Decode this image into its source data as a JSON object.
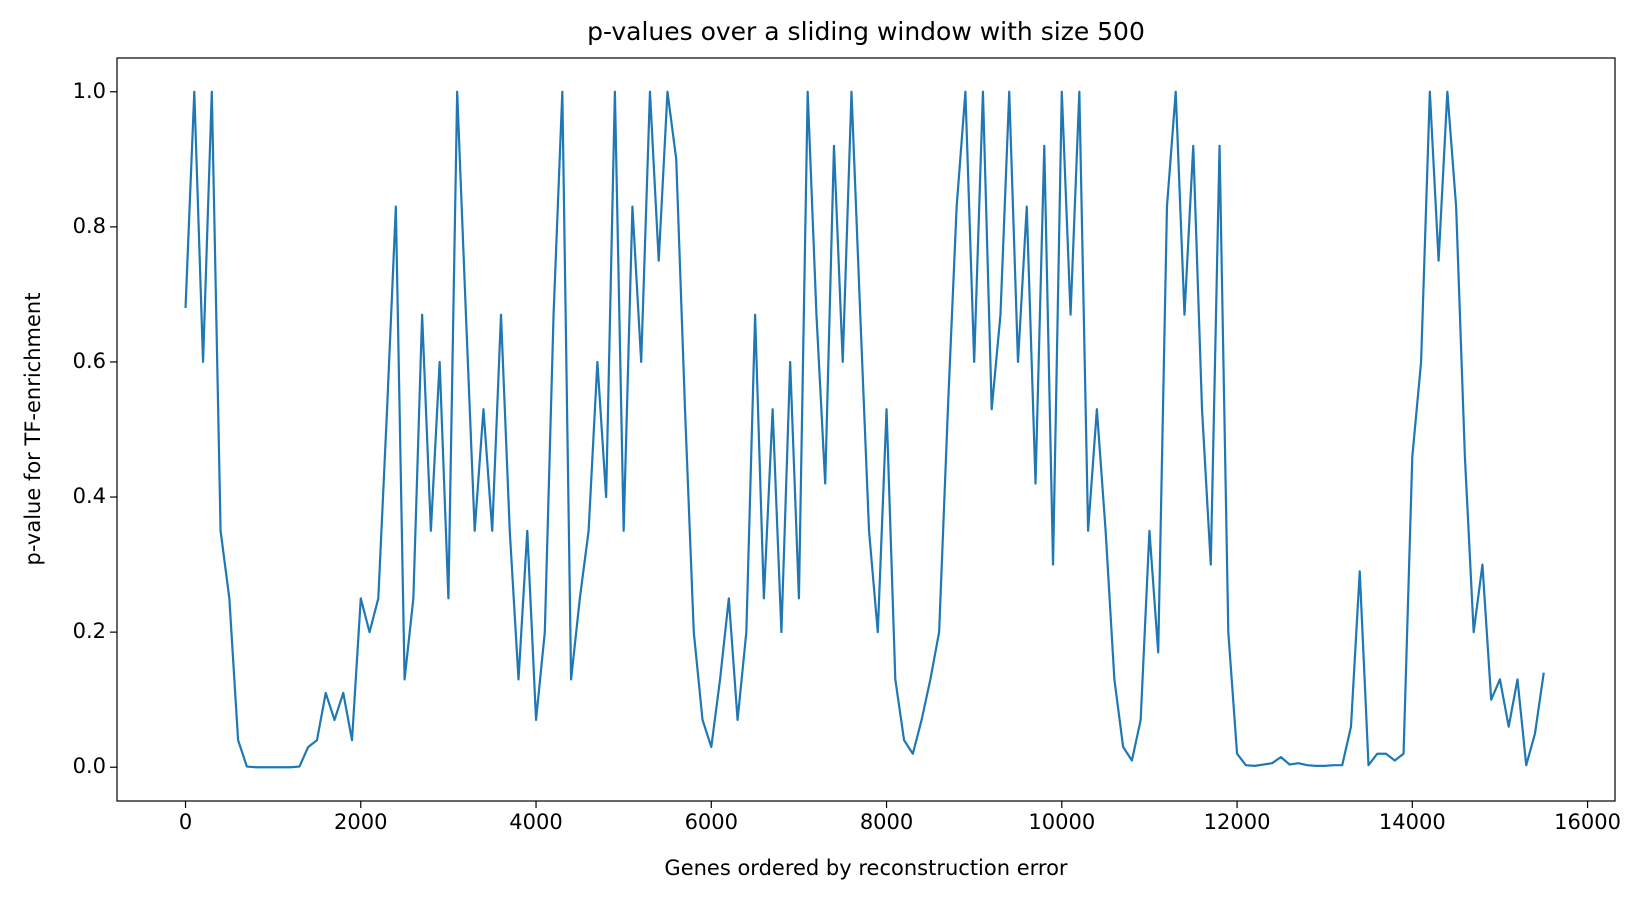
{
  "chart_data": {
    "type": "line",
    "title": "p-values over a sliding window with size 500",
    "x_label": "Genes ordered by reconstruction error",
    "y_label": "p-value for TF-enrichment",
    "x": [
      0,
      100,
      200,
      300,
      400,
      500,
      600,
      700,
      800,
      900,
      1000,
      1100,
      1200,
      1300,
      1400,
      1500,
      1600,
      1700,
      1800,
      1900,
      2000,
      2100,
      2200,
      2300,
      2400,
      2500,
      2600,
      2700,
      2800,
      2900,
      3000,
      3100,
      3200,
      3300,
      3400,
      3500,
      3600,
      3700,
      3800,
      3900,
      4000,
      4100,
      4200,
      4300,
      4400,
      4500,
      4600,
      4700,
      4800,
      4900,
      5000,
      5100,
      5200,
      5300,
      5400,
      5500,
      5600,
      5700,
      5800,
      5900,
      6000,
      6100,
      6200,
      6300,
      6400,
      6500,
      6600,
      6700,
      6800,
      6900,
      7000,
      7100,
      7200,
      7300,
      7400,
      7500,
      7600,
      7700,
      7800,
      7900,
      8000,
      8100,
      8200,
      8300,
      8400,
      8500,
      8600,
      8700,
      8800,
      8900,
      9000,
      9100,
      9200,
      9300,
      9400,
      9500,
      9600,
      9700,
      9800,
      9900,
      10000,
      10100,
      10200,
      10300,
      10400,
      10500,
      10600,
      10700,
      10800,
      10900,
      11000,
      11100,
      11200,
      11300,
      11400,
      11500,
      11600,
      11700,
      11800,
      11900,
      12000,
      12100,
      12200,
      12300,
      12400,
      12500,
      12600,
      12700,
      12800,
      12900,
      13000,
      13100,
      13200,
      13300,
      13400,
      13500,
      13600,
      13700,
      13800,
      13900,
      14000,
      14100,
      14200,
      14300,
      14400,
      14500,
      14600,
      14700,
      14800,
      14900,
      15000,
      15100,
      15200,
      15300,
      15400,
      15500
    ],
    "series": [
      {
        "color": "#1f77b4",
        "values": [
          0.68,
          1.0,
          0.6,
          1.0,
          0.35,
          0.25,
          0.04,
          0.001,
          0.0,
          0.0,
          0.0,
          0.0,
          0.0,
          0.001,
          0.03,
          0.04,
          0.11,
          0.07,
          0.11,
          0.04,
          0.25,
          0.2,
          0.25,
          0.53,
          0.83,
          0.13,
          0.25,
          0.67,
          0.35,
          0.6,
          0.25,
          1.0,
          0.67,
          0.35,
          0.53,
          0.35,
          0.67,
          0.35,
          0.13,
          0.35,
          0.07,
          0.2,
          0.67,
          1.0,
          0.13,
          0.25,
          0.35,
          0.6,
          0.4,
          1.0,
          0.35,
          0.83,
          0.6,
          1.0,
          0.75,
          1.0,
          0.9,
          0.53,
          0.2,
          0.07,
          0.03,
          0.13,
          0.25,
          0.07,
          0.2,
          0.67,
          0.25,
          0.53,
          0.2,
          0.6,
          0.25,
          1.0,
          0.67,
          0.42,
          0.92,
          0.6,
          1.0,
          0.67,
          0.35,
          0.2,
          0.53,
          0.13,
          0.04,
          0.02,
          0.07,
          0.13,
          0.2,
          0.53,
          0.83,
          1.0,
          0.6,
          1.0,
          0.53,
          0.67,
          1.0,
          0.6,
          0.83,
          0.42,
          0.92,
          0.3,
          1.0,
          0.67,
          1.0,
          0.35,
          0.53,
          0.35,
          0.13,
          0.03,
          0.01,
          0.07,
          0.35,
          0.17,
          0.83,
          1.0,
          0.67,
          0.92,
          0.53,
          0.3,
          0.92,
          0.2,
          0.02,
          0.003,
          0.002,
          0.004,
          0.006,
          0.015,
          0.004,
          0.006,
          0.003,
          0.002,
          0.002,
          0.003,
          0.003,
          0.06,
          0.29,
          0.003,
          0.02,
          0.02,
          0.01,
          0.02,
          0.46,
          0.6,
          1.0,
          0.75,
          1.0,
          0.83,
          0.46,
          0.2,
          0.3,
          0.1,
          0.13,
          0.06,
          0.13,
          0.003,
          0.05,
          0.14
        ]
      }
    ],
    "xlim": [
      -782,
      16313
    ],
    "ylim": [
      -0.05,
      1.05
    ],
    "xticks": [
      0,
      2000,
      4000,
      6000,
      8000,
      10000,
      12000,
      14000,
      16000
    ],
    "yticks": [
      {
        "value": 0,
        "label": "0.0"
      },
      0.2,
      0.4,
      0.6,
      0.8,
      {
        "value": 1,
        "label": "1.0"
      }
    ]
  }
}
